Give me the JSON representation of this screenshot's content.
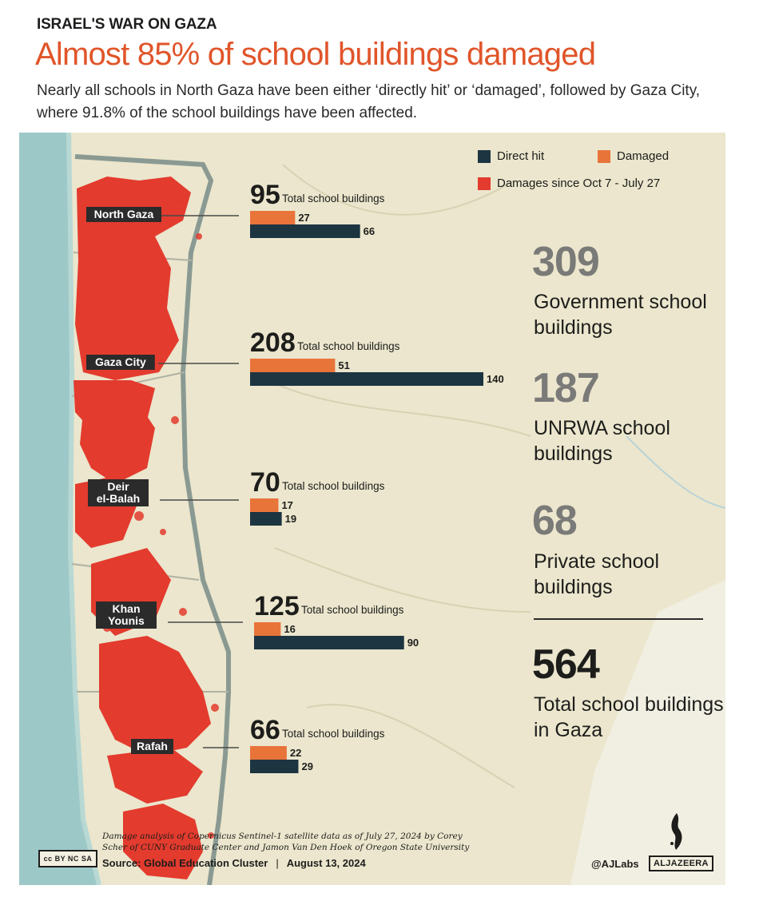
{
  "header": {
    "kicker": "ISRAEL'S WAR ON GAZA",
    "title": "Almost 85% of school buildings damaged",
    "subtitle": "Nearly all schools in North Gaza have been either ‘directly hit’ or ‘damaged’, followed by Gaza City, where 91.8% of the school buildings have been affected."
  },
  "legend": {
    "direct_hit": "Direct hit",
    "damaged": "Damaged",
    "damages_since": "Damages since Oct 7 - July 27"
  },
  "colors": {
    "direct_hit": "#1d3441",
    "damaged": "#e8743a",
    "damage_area": "#e33b2e",
    "title": "#e0552a"
  },
  "chart_data": {
    "type": "bar",
    "title": "Almost 85% of school buildings damaged",
    "series": [
      {
        "name": "Damaged",
        "values": [
          27,
          51,
          17,
          16,
          22
        ]
      },
      {
        "name": "Direct hit",
        "values": [
          66,
          140,
          19,
          90,
          29
        ]
      }
    ],
    "regions": [
      {
        "name": "North Gaza",
        "label_lines": [
          "North Gaza"
        ],
        "total": 95,
        "total_label": "Total school buildings",
        "damaged": 27,
        "direct_hit": 66
      },
      {
        "name": "Gaza City",
        "label_lines": [
          "Gaza City"
        ],
        "total": 208,
        "total_label": "Total school buildings",
        "damaged": 51,
        "direct_hit": 140
      },
      {
        "name": "Deir el-Balah",
        "label_lines": [
          "Deir",
          "el-Balah"
        ],
        "total": 70,
        "total_label": "Total school buildings",
        "damaged": 17,
        "direct_hit": 19
      },
      {
        "name": "Khan Younis",
        "label_lines": [
          "Khan",
          "Younis"
        ],
        "total": 125,
        "total_label": "Total school buildings",
        "damaged": 16,
        "direct_hit": 90
      },
      {
        "name": "Rafah",
        "label_lines": [
          "Rafah"
        ],
        "total": 66,
        "total_label": "Total school buildings",
        "damaged": 22,
        "direct_hit": 29
      }
    ],
    "orientation": "horizontal",
    "xlim": [
      0,
      140
    ]
  },
  "stats": [
    {
      "value": "309",
      "label": "Government school buildings"
    },
    {
      "value": "187",
      "label": "UNRWA school buildings"
    },
    {
      "value": "68",
      "label": "Private school buildings"
    },
    {
      "value": "564",
      "label": "Total school buildings in Gaza"
    }
  ],
  "footer": {
    "note": "Damage analysis of Copernicus Sentinel-1 satellite data as of July 27, 2024 by Corey Scher of CUNY Graduate Center and Jamon Van Den Hoek of Oregon State University",
    "source": "Source:  Global Education Cluster",
    "separator": "|",
    "date": "August 13, 2024",
    "cc_badge": "cc BY NC SA",
    "handle": "@AJLabs",
    "brand": "ALJAZEERA"
  }
}
